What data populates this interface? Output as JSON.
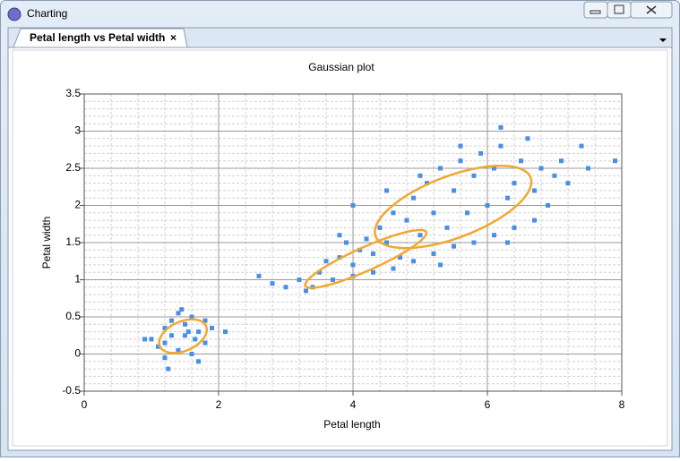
{
  "window": {
    "title": "Charting"
  },
  "tab": {
    "label": "Petal length vs Petal width",
    "close": "×"
  },
  "chart_data": {
    "type": "scatter",
    "title": "Gaussian plot",
    "x_label": "Petal length",
    "y_label": "Petal width",
    "x": [
      1.0,
      1.1,
      1.2,
      1.3,
      1.4,
      1.5,
      1.6,
      1.7,
      1.8,
      1.9,
      1.2,
      1.4,
      1.6,
      1.8,
      1.3,
      1.5,
      1.7,
      0.9,
      2.1,
      1.25,
      1.45,
      1.65,
      1.2,
      1.55,
      2.6,
      2.8,
      3.0,
      3.2,
      3.3,
      3.5,
      3.6,
      3.8,
      3.9,
      4.0,
      4.1,
      4.2,
      4.3,
      4.4,
      4.5,
      4.6,
      4.7,
      4.8,
      4.9,
      5.0,
      5.1,
      5.2,
      5.3,
      5.4,
      5.5,
      5.6,
      5.7,
      5.8,
      5.9,
      6.0,
      6.1,
      6.2,
      6.3,
      6.4,
      6.5,
      6.6,
      6.7,
      6.8,
      6.9,
      7.0,
      7.1,
      7.2,
      7.4,
      7.5,
      7.9,
      3.4,
      3.7,
      4.0,
      4.3,
      4.6,
      4.9,
      5.2,
      5.5,
      5.8,
      6.1,
      6.4,
      6.7,
      4.5,
      5.0,
      5.6,
      6.2,
      4.0,
      3.8,
      6.3,
      5.3
    ],
    "values": [
      0.2,
      0.1,
      0.35,
      0.45,
      0.05,
      0.25,
      0.5,
      0.3,
      0.15,
      0.35,
      -0.05,
      0.55,
      0.0,
      0.45,
      0.25,
      0.4,
      -0.1,
      0.2,
      0.3,
      -0.2,
      0.6,
      0.2,
      0.15,
      0.3,
      1.05,
      0.95,
      0.9,
      1.0,
      0.85,
      1.1,
      1.25,
      1.3,
      1.5,
      1.2,
      1.4,
      1.55,
      1.35,
      1.7,
      1.5,
      1.9,
      1.3,
      1.8,
      2.1,
      1.6,
      2.3,
      1.9,
      2.5,
      1.7,
      2.2,
      2.6,
      1.9,
      2.4,
      2.7,
      2.0,
      2.5,
      2.8,
      2.1,
      2.3,
      2.6,
      2.9,
      2.2,
      2.5,
      2.0,
      2.4,
      2.6,
      2.3,
      2.8,
      2.5,
      2.6,
      0.9,
      1.0,
      1.05,
      1.1,
      1.15,
      1.25,
      1.35,
      1.45,
      1.5,
      1.6,
      1.7,
      1.8,
      2.2,
      2.4,
      2.8,
      3.05,
      2.0,
      1.6,
      1.5,
      1.2
    ],
    "color": "#4a8ee6",
    "xlim": [
      0,
      8
    ],
    "ylim": [
      -0.5,
      3.5
    ],
    "xticks": [
      0,
      2,
      4,
      6,
      8
    ],
    "yticks": [
      -0.5,
      0,
      0.5,
      1,
      1.5,
      2,
      2.5,
      3,
      3.5
    ],
    "grid": true,
    "minor_grid": true,
    "ellipses": [
      {
        "cx": 1.47,
        "cy": 0.24,
        "a": 0.37,
        "b": 0.2,
        "angle": 20
      },
      {
        "cx": 4.19,
        "cy": 1.28,
        "a": 0.97,
        "b": 0.16,
        "angle": 21.8
      },
      {
        "cx": 5.49,
        "cy": 1.98,
        "a": 1.22,
        "b": 0.42,
        "angle": 18.4
      }
    ],
    "ellipse_color": "#f0a830"
  }
}
